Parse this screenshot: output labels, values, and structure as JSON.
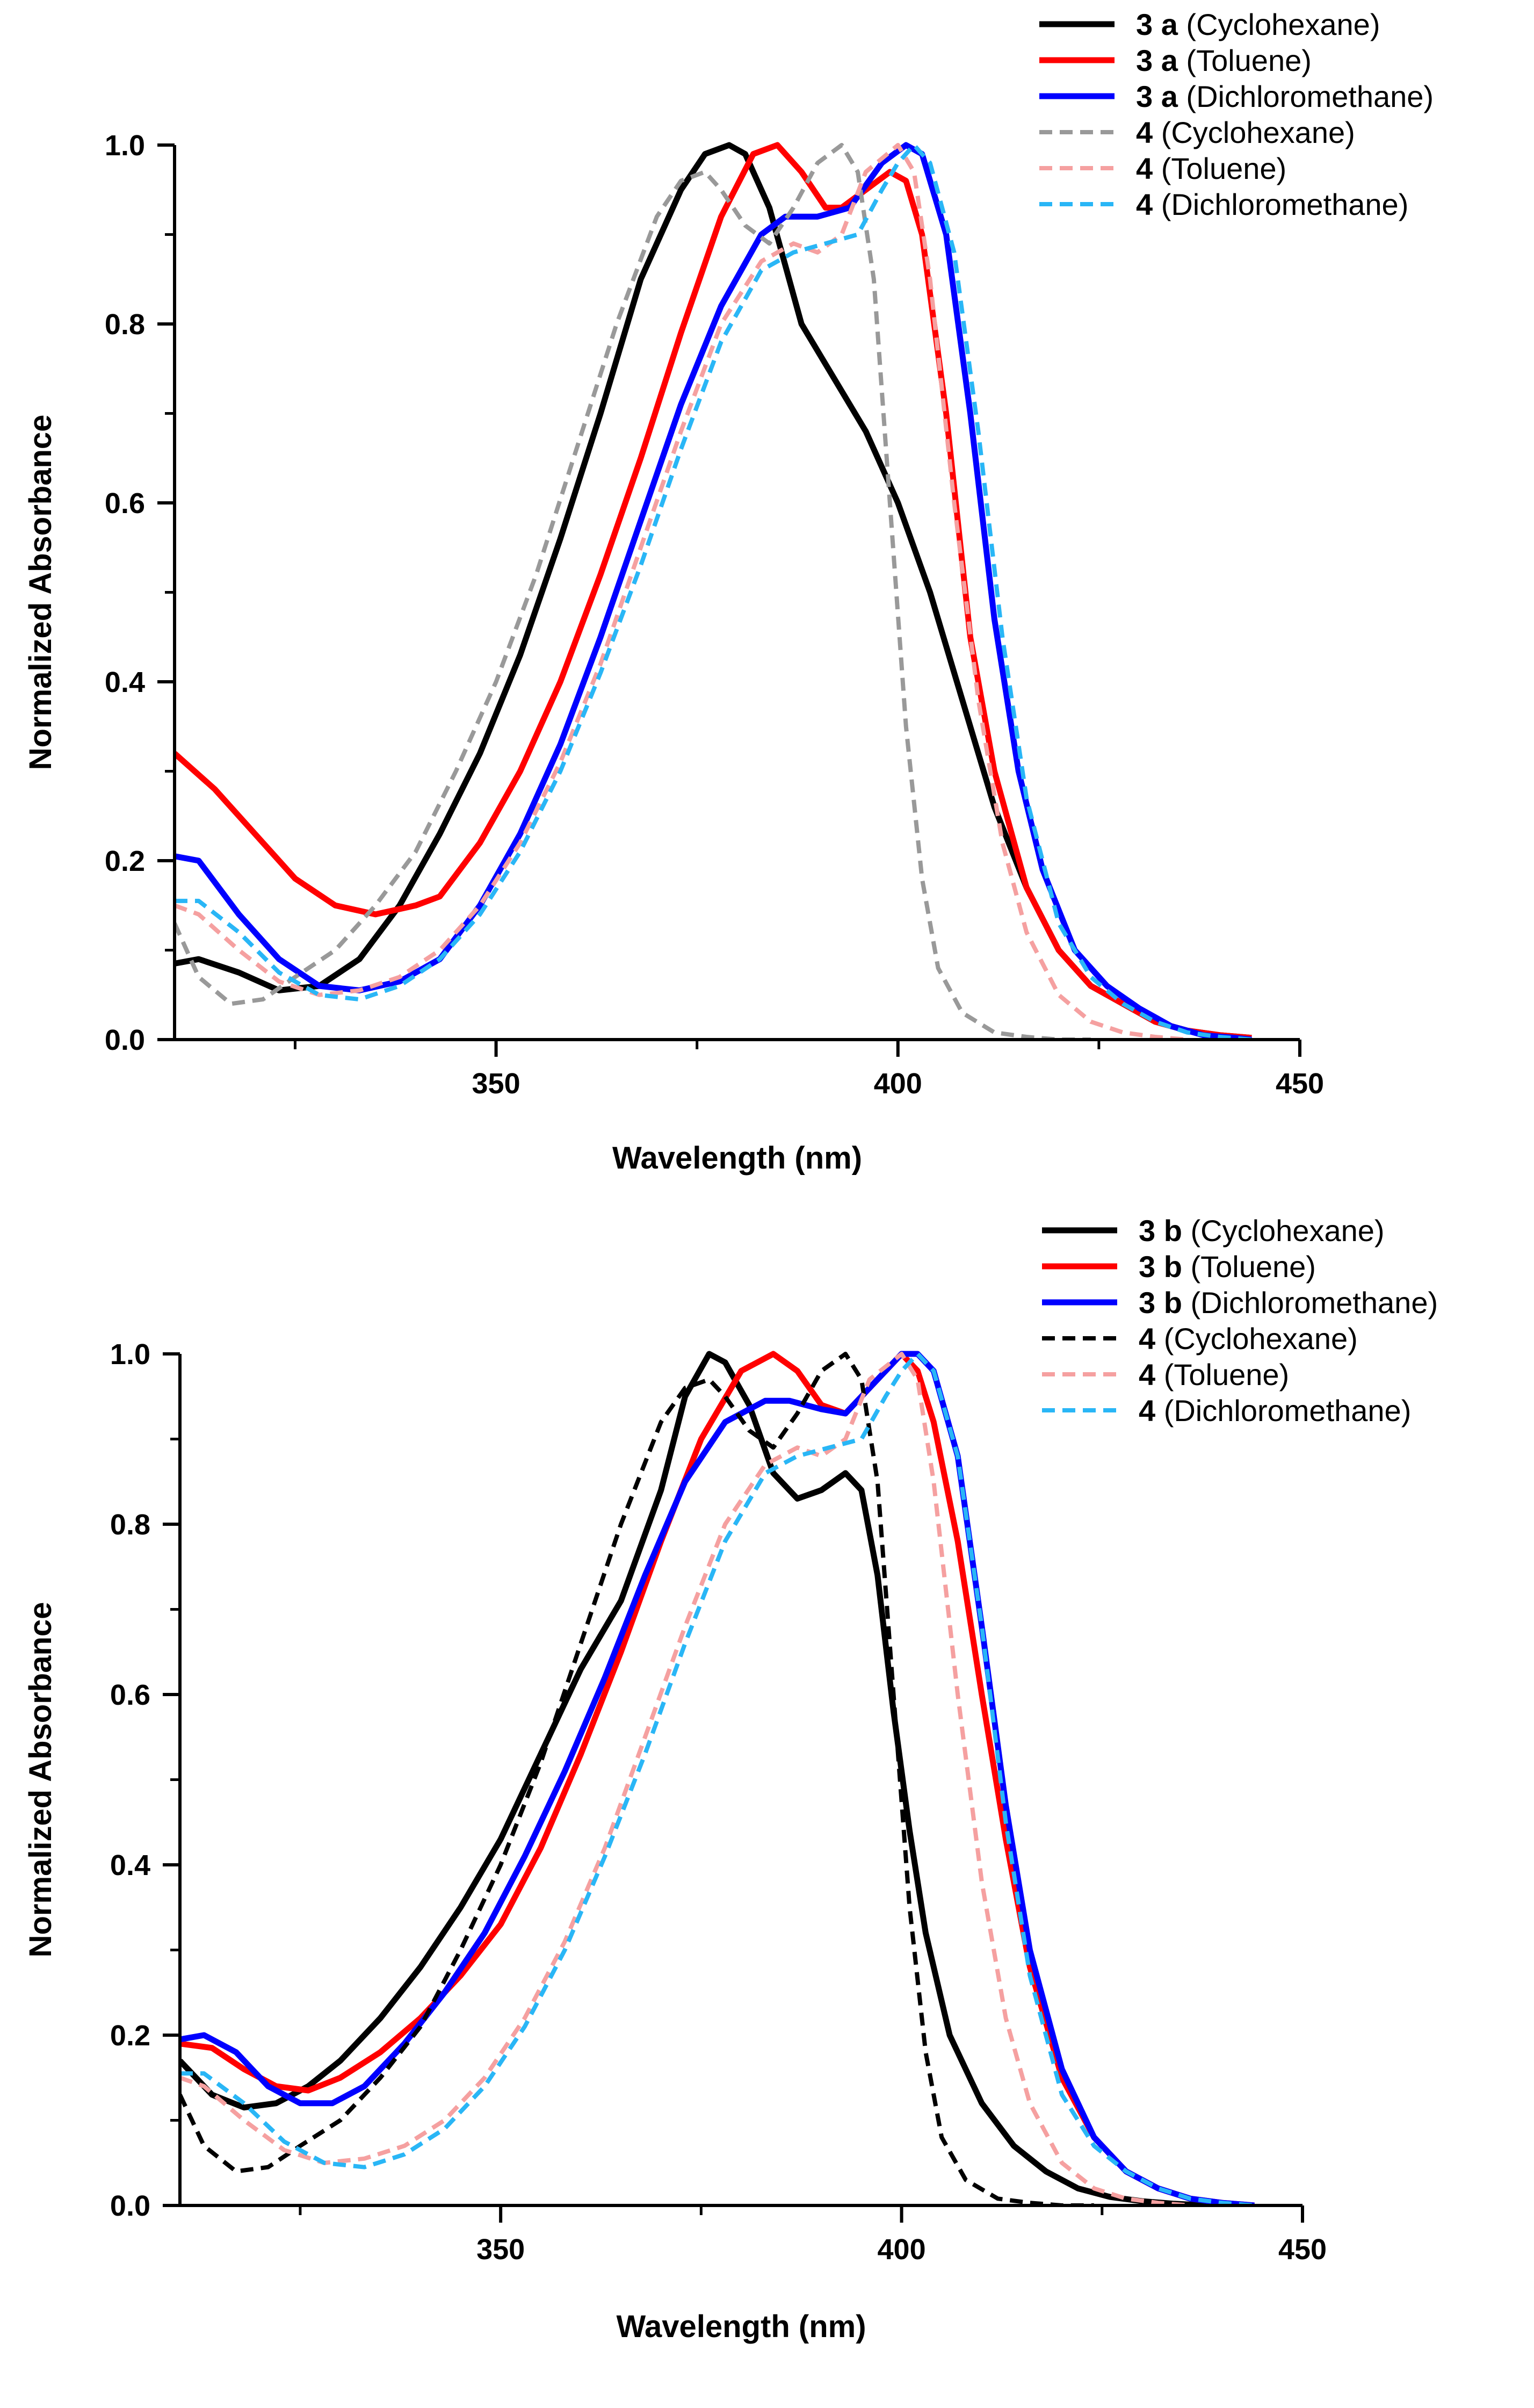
{
  "chart_data": [
    {
      "type": "line",
      "xlabel": "Wavelength (nm)",
      "ylabel": "Normalized Absorbance",
      "xlim": [
        310,
        450
      ],
      "ylim": [
        0,
        1.0
      ],
      "xticks": [
        350,
        400,
        450
      ],
      "xtick_labels": [
        "350",
        "400",
        "450"
      ],
      "yticks": [
        0,
        0.2,
        0.4,
        0.6,
        0.8,
        1.0
      ],
      "ytick_labels": [
        "0.0",
        "0.2",
        "0.4",
        "0.6",
        "0.8",
        "1.0"
      ],
      "legend_position": "top-right",
      "series": [
        {
          "name": "3 a (Cyclohexane)",
          "label_bold": "3 a",
          "label_rest": " (Cyclohexane)",
          "color": "#000000",
          "dash": "solid",
          "x": [
            310,
            313,
            318,
            323,
            328,
            333,
            338,
            343,
            348,
            353,
            358,
            363,
            368,
            373,
            376,
            379,
            381,
            384,
            388,
            392,
            396,
            400,
            404,
            408,
            412,
            416,
            420,
            424,
            428,
            432,
            436,
            440,
            444
          ],
          "y": [
            0.085,
            0.09,
            0.075,
            0.055,
            0.06,
            0.09,
            0.15,
            0.23,
            0.32,
            0.43,
            0.56,
            0.7,
            0.85,
            0.95,
            0.99,
            1.0,
            0.99,
            0.93,
            0.8,
            0.74,
            0.68,
            0.6,
            0.5,
            0.38,
            0.26,
            0.17,
            0.1,
            0.06,
            0.04,
            0.02,
            0.01,
            0.005,
            0.002
          ]
        },
        {
          "name": "3 a (Toluene)",
          "label_bold": "3 a",
          "label_rest": " (Toluene)",
          "color": "#ff0000",
          "dash": "solid",
          "x": [
            310,
            315,
            320,
            325,
            330,
            335,
            340,
            343,
            348,
            353,
            358,
            363,
            368,
            373,
            378,
            382,
            385,
            388,
            391,
            393,
            396,
            399,
            401,
            403,
            406,
            409,
            412,
            416,
            420,
            424,
            428,
            432,
            436,
            440,
            444
          ],
          "y": [
            0.32,
            0.28,
            0.23,
            0.18,
            0.15,
            0.14,
            0.15,
            0.16,
            0.22,
            0.3,
            0.4,
            0.52,
            0.65,
            0.79,
            0.92,
            0.99,
            1.0,
            0.97,
            0.93,
            0.93,
            0.95,
            0.97,
            0.96,
            0.9,
            0.7,
            0.45,
            0.3,
            0.17,
            0.1,
            0.06,
            0.04,
            0.02,
            0.01,
            0.005,
            0.002
          ]
        },
        {
          "name": "3 a (Dichloromethane)",
          "label_bold": "3 a",
          "label_rest": " (Dichloromethane)",
          "color": "#0000ff",
          "dash": "solid",
          "x": [
            310,
            313,
            318,
            323,
            328,
            333,
            338,
            343,
            348,
            353,
            358,
            363,
            368,
            373,
            378,
            383,
            386,
            390,
            394,
            398,
            401,
            403,
            406,
            409,
            412,
            415,
            418,
            422,
            426,
            430,
            434,
            438,
            442,
            444
          ],
          "y": [
            0.205,
            0.2,
            0.14,
            0.09,
            0.06,
            0.055,
            0.065,
            0.09,
            0.15,
            0.23,
            0.33,
            0.45,
            0.58,
            0.71,
            0.82,
            0.9,
            0.92,
            0.92,
            0.93,
            0.98,
            1.0,
            0.99,
            0.9,
            0.7,
            0.47,
            0.3,
            0.19,
            0.1,
            0.06,
            0.035,
            0.015,
            0.005,
            0.002,
            0.0
          ]
        },
        {
          "name": "4 (Cyclohexane)",
          "label_bold": "4",
          "label_rest": " (Cyclohexane)",
          "color": "#999999",
          "dash": "dashed",
          "x": [
            310,
            313,
            317,
            321,
            325,
            330,
            335,
            340,
            345,
            350,
            355,
            360,
            365,
            370,
            373,
            376,
            378,
            381,
            384,
            387,
            390,
            393,
            395,
            397,
            399,
            401,
            403,
            405,
            408,
            412,
            416,
            420,
            424
          ],
          "y": [
            0.13,
            0.07,
            0.04,
            0.045,
            0.07,
            0.1,
            0.15,
            0.21,
            0.3,
            0.4,
            0.52,
            0.66,
            0.8,
            0.92,
            0.96,
            0.97,
            0.95,
            0.91,
            0.89,
            0.93,
            0.98,
            1.0,
            0.97,
            0.85,
            0.6,
            0.35,
            0.18,
            0.08,
            0.03,
            0.008,
            0.003,
            0.0,
            0.0
          ]
        },
        {
          "name": "4 (Toluene)",
          "label_bold": "4",
          "label_rest": " (Toluene)",
          "color": "#f5a0a0",
          "dash": "dashed",
          "x": [
            310,
            313,
            318,
            323,
            328,
            333,
            338,
            343,
            348,
            353,
            358,
            363,
            368,
            373,
            378,
            383,
            387,
            390,
            393,
            396,
            400,
            402,
            404,
            407,
            410,
            413,
            416,
            420,
            424,
            428,
            432,
            436
          ],
          "y": [
            0.15,
            0.14,
            0.1,
            0.065,
            0.05,
            0.055,
            0.07,
            0.1,
            0.15,
            0.22,
            0.31,
            0.42,
            0.55,
            0.68,
            0.8,
            0.87,
            0.89,
            0.88,
            0.9,
            0.97,
            1.0,
            0.97,
            0.85,
            0.6,
            0.38,
            0.22,
            0.12,
            0.05,
            0.02,
            0.008,
            0.003,
            0.0
          ]
        },
        {
          "name": "4 (Dichloromethane)",
          "label_bold": "4",
          "label_rest": " (Dichloromethane)",
          "color": "#29b6f6",
          "dash": "dashed",
          "x": [
            310,
            313,
            318,
            323,
            328,
            333,
            338,
            343,
            348,
            353,
            358,
            363,
            368,
            373,
            378,
            383,
            387,
            391,
            395,
            398,
            400,
            402,
            404,
            407,
            410,
            413,
            416,
            420,
            424,
            428,
            432,
            436,
            440,
            444
          ],
          "y": [
            0.155,
            0.155,
            0.12,
            0.075,
            0.05,
            0.045,
            0.06,
            0.09,
            0.14,
            0.21,
            0.3,
            0.41,
            0.53,
            0.66,
            0.78,
            0.86,
            0.88,
            0.89,
            0.9,
            0.95,
            0.98,
            1.0,
            0.98,
            0.88,
            0.68,
            0.45,
            0.27,
            0.13,
            0.07,
            0.04,
            0.02,
            0.008,
            0.003,
            0.0
          ]
        }
      ]
    },
    {
      "type": "line",
      "xlabel": "Wavelength (nm)",
      "ylabel": "Normalized Absorbance",
      "xlim": [
        310,
        450
      ],
      "ylim": [
        0,
        1.0
      ],
      "xticks": [
        350,
        400,
        450
      ],
      "xtick_labels": [
        "350",
        "400",
        "450"
      ],
      "yticks": [
        0,
        0.2,
        0.4,
        0.6,
        0.8,
        1.0
      ],
      "ytick_labels": [
        "0.0",
        "0.2",
        "0.4",
        "0.6",
        "0.8",
        "1.0"
      ],
      "legend_position": "top-right",
      "series": [
        {
          "name": "3 b (Cyclohexane)",
          "label_bold": "3 b",
          "label_rest": " (Cyclohexane)",
          "color": "#000000",
          "dash": "solid",
          "x": [
            310,
            314,
            318,
            322,
            326,
            330,
            335,
            340,
            345,
            350,
            355,
            360,
            365,
            370,
            373,
            376,
            378,
            381,
            384,
            387,
            390,
            393,
            395,
            397,
            399,
            401,
            403,
            406,
            410,
            414,
            418,
            422,
            426,
            430,
            434,
            438
          ],
          "y": [
            0.17,
            0.13,
            0.115,
            0.12,
            0.14,
            0.17,
            0.22,
            0.28,
            0.35,
            0.43,
            0.53,
            0.63,
            0.71,
            0.84,
            0.95,
            1.0,
            0.99,
            0.94,
            0.86,
            0.83,
            0.84,
            0.86,
            0.84,
            0.74,
            0.58,
            0.44,
            0.32,
            0.2,
            0.12,
            0.07,
            0.04,
            0.02,
            0.01,
            0.005,
            0.002,
            0.0
          ]
        },
        {
          "name": "3 b (Toluene)",
          "label_bold": "3 b",
          "label_rest": " (Toluene)",
          "color": "#ff0000",
          "dash": "solid",
          "x": [
            310,
            314,
            318,
            322,
            326,
            330,
            335,
            340,
            345,
            350,
            355,
            360,
            365,
            370,
            375,
            380,
            384,
            387,
            390,
            393,
            396,
            400,
            402,
            404,
            407,
            410,
            413,
            416,
            420,
            424,
            428,
            432,
            436,
            440,
            444
          ],
          "y": [
            0.19,
            0.185,
            0.16,
            0.14,
            0.135,
            0.15,
            0.18,
            0.22,
            0.27,
            0.33,
            0.42,
            0.53,
            0.65,
            0.78,
            0.9,
            0.98,
            1.0,
            0.98,
            0.94,
            0.93,
            0.96,
            1.0,
            0.98,
            0.92,
            0.78,
            0.6,
            0.43,
            0.28,
            0.15,
            0.08,
            0.04,
            0.02,
            0.008,
            0.003,
            0.0
          ]
        },
        {
          "name": "3 b (Dichloromethane)",
          "label_bold": "3 b",
          "label_rest": " (Dichloromethane)",
          "color": "#0000ff",
          "dash": "solid",
          "x": [
            310,
            313,
            317,
            321,
            325,
            329,
            333,
            338,
            343,
            348,
            353,
            358,
            363,
            368,
            373,
            378,
            383,
            386,
            390,
            393,
            396,
            400,
            402,
            404,
            407,
            410,
            413,
            416,
            420,
            424,
            428,
            432,
            436,
            440,
            444
          ],
          "y": [
            0.195,
            0.2,
            0.18,
            0.14,
            0.12,
            0.12,
            0.14,
            0.19,
            0.25,
            0.32,
            0.41,
            0.51,
            0.62,
            0.74,
            0.85,
            0.92,
            0.945,
            0.945,
            0.935,
            0.93,
            0.96,
            1.0,
            1.0,
            0.98,
            0.88,
            0.68,
            0.47,
            0.3,
            0.16,
            0.08,
            0.04,
            0.02,
            0.008,
            0.003,
            0.0
          ]
        },
        {
          "name": "4 (Cyclohexane)",
          "label_bold": "4",
          "label_rest": " (Cyclohexane)",
          "color": "#000000",
          "dash": "dashed",
          "x": [
            310,
            313,
            317,
            321,
            325,
            330,
            335,
            340,
            345,
            350,
            355,
            360,
            365,
            370,
            373,
            376,
            378,
            381,
            384,
            387,
            390,
            393,
            395,
            397,
            399,
            401,
            403,
            405,
            408,
            412,
            416,
            420,
            424
          ],
          "y": [
            0.13,
            0.07,
            0.04,
            0.045,
            0.07,
            0.1,
            0.15,
            0.21,
            0.3,
            0.4,
            0.52,
            0.66,
            0.8,
            0.92,
            0.96,
            0.97,
            0.95,
            0.91,
            0.89,
            0.93,
            0.98,
            1.0,
            0.97,
            0.85,
            0.6,
            0.35,
            0.18,
            0.08,
            0.03,
            0.008,
            0.003,
            0.0,
            0.0
          ]
        },
        {
          "name": "4 (Toluene)",
          "label_bold": "4",
          "label_rest": " (Toluene)",
          "color": "#f5a0a0",
          "dash": "dashed",
          "x": [
            310,
            313,
            318,
            323,
            328,
            333,
            338,
            343,
            348,
            353,
            358,
            363,
            368,
            373,
            378,
            383,
            387,
            390,
            393,
            396,
            400,
            402,
            404,
            407,
            410,
            413,
            416,
            420,
            424,
            428,
            432,
            436
          ],
          "y": [
            0.15,
            0.14,
            0.1,
            0.065,
            0.05,
            0.055,
            0.07,
            0.1,
            0.15,
            0.22,
            0.31,
            0.42,
            0.55,
            0.68,
            0.8,
            0.87,
            0.89,
            0.88,
            0.9,
            0.97,
            1.0,
            0.97,
            0.85,
            0.6,
            0.38,
            0.22,
            0.12,
            0.05,
            0.02,
            0.008,
            0.003,
            0.0
          ]
        },
        {
          "name": "4 (Dichloromethane)",
          "label_bold": "4",
          "label_rest": " (Dichloromethane)",
          "color": "#29b6f6",
          "dash": "dashed",
          "x": [
            310,
            313,
            318,
            323,
            328,
            333,
            338,
            343,
            348,
            353,
            358,
            363,
            368,
            373,
            378,
            383,
            387,
            391,
            395,
            398,
            400,
            402,
            404,
            407,
            410,
            413,
            416,
            420,
            424,
            428,
            432,
            436,
            440,
            444
          ],
          "y": [
            0.155,
            0.155,
            0.12,
            0.075,
            0.05,
            0.045,
            0.06,
            0.09,
            0.14,
            0.21,
            0.3,
            0.41,
            0.53,
            0.66,
            0.78,
            0.86,
            0.88,
            0.89,
            0.9,
            0.95,
            0.98,
            1.0,
            0.98,
            0.88,
            0.68,
            0.45,
            0.27,
            0.13,
            0.07,
            0.04,
            0.02,
            0.008,
            0.003,
            0.0
          ]
        }
      ]
    }
  ]
}
